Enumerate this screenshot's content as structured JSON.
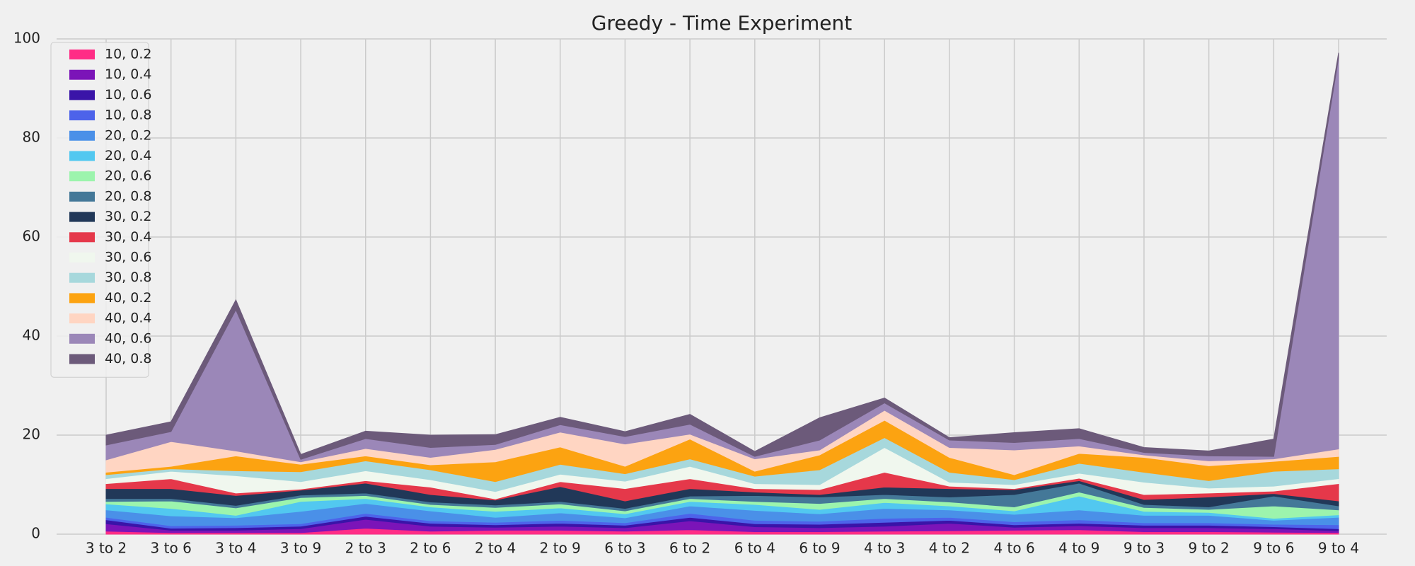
{
  "chart_data": {
    "type": "area",
    "title": "Greedy - Time Experiment",
    "xlabel": "",
    "ylabel": "",
    "ylim": [
      0,
      100
    ],
    "yticks": [
      0,
      20,
      40,
      60,
      80,
      100
    ],
    "grid": true,
    "legend_position": "top-left",
    "categories": [
      "3 to 2",
      "3 to 6",
      "3 to 4",
      "3 to 9",
      "2 to 3",
      "2 to 6",
      "2 to 4",
      "2 to 9",
      "6 to 3",
      "6 to 2",
      "6 to 4",
      "6 to 9",
      "4 to 3",
      "4 to 2",
      "4 to 6",
      "4 to 9",
      "9 to 3",
      "9 to 2",
      "9 to 6",
      "9 to 4"
    ],
    "series": [
      {
        "name": "10, 0.2",
        "color": "#ff2d86",
        "values": [
          0.6,
          0.3,
          0.3,
          0.3,
          1.2,
          0.6,
          0.8,
          0.8,
          0.6,
          0.9,
          0.5,
          0.5,
          0.6,
          0.7,
          0.8,
          0.9,
          0.5,
          0.5,
          0.4,
          0.3
        ]
      },
      {
        "name": "10, 0.4",
        "color": "#7b14b8",
        "values": [
          1.5,
          0.5,
          0.5,
          0.8,
          1.8,
          1.0,
          0.6,
          0.8,
          0.7,
          1.8,
          1.0,
          0.8,
          1.0,
          1.5,
          0.6,
          0.8,
          0.8,
          0.8,
          0.7,
          0.4
        ]
      },
      {
        "name": "10, 0.6",
        "color": "#3a14a8",
        "values": [
          0.8,
          0.4,
          0.5,
          0.5,
          0.6,
          0.6,
          0.5,
          0.6,
          0.5,
          0.7,
          0.6,
          0.7,
          0.8,
          0.6,
          0.5,
          0.5,
          0.5,
          0.5,
          0.4,
          0.4
        ]
      },
      {
        "name": "10, 0.8",
        "color": "#4d63ea",
        "values": [
          0.5,
          0.5,
          0.5,
          0.5,
          0.6,
          0.5,
          0.5,
          0.6,
          0.5,
          0.8,
          0.7,
          0.6,
          0.8,
          0.6,
          0.6,
          0.7,
          0.5,
          0.5,
          0.5,
          0.8
        ]
      },
      {
        "name": "20, 0.2",
        "color": "#4a90e8",
        "values": [
          1.5,
          2.0,
          1.5,
          2.5,
          2.0,
          2.0,
          1.0,
          1.5,
          1.0,
          1.5,
          2.0,
          1.5,
          2.0,
          1.5,
          1.5,
          2.0,
          1.5,
          1.5,
          0.8,
          1.5
        ]
      },
      {
        "name": "20, 0.4",
        "color": "#52c8f0",
        "values": [
          1.2,
          1.5,
          0.5,
          2.0,
          1.0,
          0.8,
          1.2,
          1.0,
          0.8,
          0.9,
          1.2,
          0.9,
          1.2,
          0.8,
          0.7,
          2.8,
          0.8,
          0.6,
          0.4,
          0.5
        ]
      },
      {
        "name": "20, 0.6",
        "color": "#9cf4ad",
        "values": [
          0.5,
          1.5,
          1.5,
          0.8,
          0.6,
          0.5,
          0.8,
          0.8,
          0.6,
          0.6,
          0.6,
          1.2,
          0.8,
          0.8,
          0.8,
          0.8,
          0.8,
          0.6,
          2.5,
          1.0
        ]
      },
      {
        "name": "20, 0.8",
        "color": "#447898",
        "values": [
          0.6,
          0.5,
          0.5,
          0.5,
          0.5,
          0.5,
          0.5,
          0.5,
          0.5,
          0.5,
          1.2,
          1.3,
          0.8,
          1.0,
          2.5,
          1.8,
          0.6,
          0.5,
          2.0,
          0.8
        ]
      },
      {
        "name": "30, 0.2",
        "color": "#213858",
        "values": [
          2.0,
          2.0,
          2.0,
          1.0,
          2.0,
          1.5,
          1.0,
          3.0,
          1.5,
          1.5,
          0.7,
          0.5,
          1.5,
          1.7,
          1.0,
          0.5,
          1.0,
          2.0,
          0.5,
          1.0
        ]
      },
      {
        "name": "30, 0.4",
        "color": "#e5384a",
        "values": [
          1.0,
          2.0,
          0.5,
          0.2,
          0.5,
          1.5,
          0.2,
          1.0,
          2.5,
          2.0,
          0.7,
          1.0,
          3.0,
          0.5,
          0.2,
          0.5,
          1.0,
          0.8,
          0.5,
          3.5
        ]
      },
      {
        "name": "30, 0.6",
        "color": "#f0f7ee",
        "values": [
          1.0,
          1.5,
          3.5,
          1.5,
          2.0,
          1.5,
          1.5,
          1.5,
          1.5,
          2.5,
          1.0,
          1.0,
          5.0,
          0.8,
          0.8,
          1.0,
          2.5,
          1.0,
          1.0,
          1.0
        ]
      },
      {
        "name": "30, 0.8",
        "color": "#a7d8dc",
        "values": [
          0.8,
          0.5,
          1.0,
          2.0,
          2.0,
          2.0,
          2.0,
          2.0,
          1.5,
          1.5,
          1.5,
          3.0,
          2.0,
          2.0,
          1.0,
          2.0,
          2.0,
          1.5,
          3.0,
          2.0
        ]
      },
      {
        "name": "40, 0.2",
        "color": "#fca311",
        "values": [
          0.5,
          0.5,
          3.0,
          1.5,
          1.0,
          1.0,
          4.0,
          3.5,
          1.5,
          4.0,
          1.0,
          3.0,
          3.5,
          3.0,
          1.0,
          2.0,
          3.0,
          3.0,
          2.0,
          2.5
        ]
      },
      {
        "name": "40, 0.4",
        "color": "#ffd5c2",
        "values": [
          2.5,
          5.0,
          1.0,
          0.5,
          1.5,
          1.5,
          2.5,
          3.0,
          4.5,
          1.0,
          2.5,
          1.0,
          2.0,
          2.0,
          5.0,
          1.5,
          0.5,
          1.0,
          0.5,
          1.5
        ]
      },
      {
        "name": "40, 0.6",
        "color": "#9b87b8",
        "values": [
          3.0,
          2.0,
          28.5,
          0.5,
          2.0,
          2.0,
          1.0,
          1.5,
          1.5,
          2.0,
          0.5,
          2.0,
          1.5,
          1.5,
          1.5,
          1.5,
          0.5,
          1.0,
          0.5,
          79.0
        ]
      },
      {
        "name": "40, 0.8",
        "color": "#6c5a7a",
        "values": [
          2.0,
          2.0,
          2.0,
          1.0,
          1.5,
          2.5,
          2.0,
          1.5,
          1.0,
          2.0,
          1.0,
          4.5,
          1.0,
          0.5,
          2.0,
          2.0,
          1.0,
          1.0,
          3.5,
          1.0
        ]
      }
    ]
  }
}
